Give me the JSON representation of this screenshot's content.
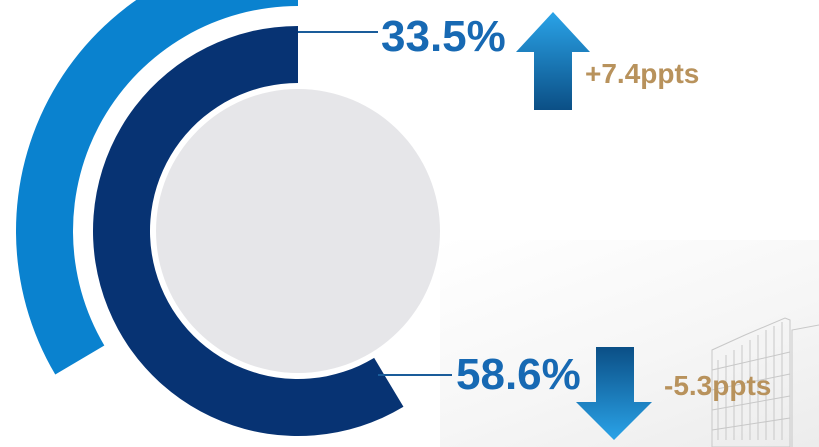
{
  "chart_data": {
    "type": "radial_bar",
    "title": "",
    "series": [
      {
        "value": 33.5,
        "label": "33.5%",
        "change": 7.4,
        "change_label": "+7.4ppts",
        "direction": "up",
        "color": "#0a82cf"
      },
      {
        "value": 58.6,
        "label": "58.6%",
        "change": -5.3,
        "change_label": "-5.3ppts",
        "direction": "down",
        "color": "#073373"
      }
    ]
  },
  "colors": {
    "value_text": "#1769b3",
    "delta_text": "#b8925c",
    "center_circle": "#e6e6e9",
    "leader_line": "#1a5c9a",
    "arrow_light": "#2aa3e8",
    "arrow_dark": "#0b4f86",
    "building_line": "#c8c8c8"
  },
  "icons": {
    "up": "arrow-up-icon",
    "down": "arrow-down-icon",
    "background": "building-icon"
  }
}
